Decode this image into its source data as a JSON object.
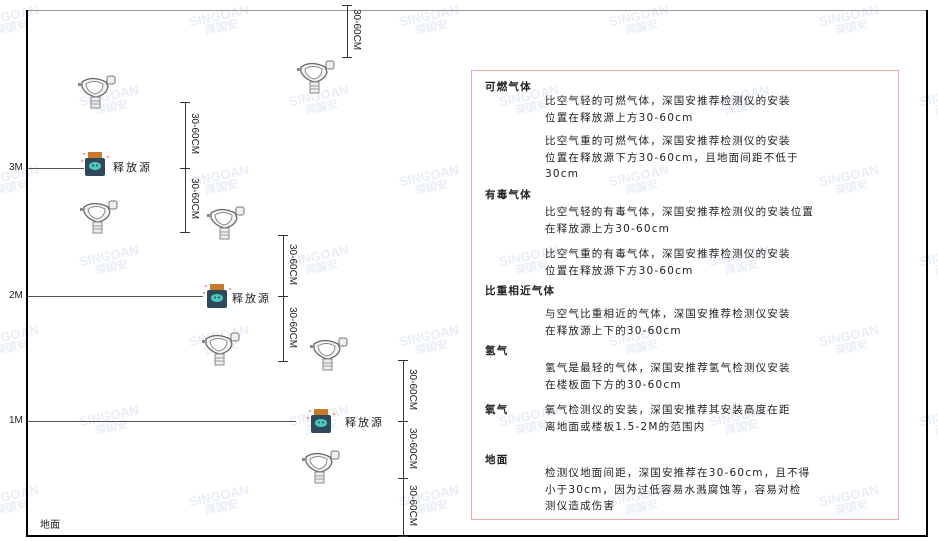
{
  "watermark": {
    "brand": "SINGOAN",
    "chinese": "深国安"
  },
  "levels": [
    "3M",
    "2M",
    "1M"
  ],
  "ground_label": "地面",
  "source_label": "释放源",
  "dimension_label": "30-60CM",
  "colors": {
    "box_border": "#f2a7ad",
    "frame": "#000000",
    "source_body": "#2e4a5a",
    "source_cap": "#c87a2a",
    "source_face": "#4ec9c0"
  },
  "legend": {
    "sections": [
      {
        "title": "可燃气体",
        "paragraphs": [
          [
            "比空气轻的可燃气体，深国安推荐检测仪的安装",
            "位置在释放源上方30-60cm"
          ],
          [
            "比空气重的可燃气体，深国安推荐检测仪的安装",
            "位置在释放源下方30-60cm，且地面间距不低于",
            "30cm"
          ]
        ]
      },
      {
        "title": "有毒气体",
        "paragraphs": [
          [
            "比空气轻的有毒气体，深国安推荐检测仪的安装位置",
            "在释放源上方30-60cm"
          ],
          [
            "比空气重的有毒气体，深国安推荐检测仪的安装",
            "位置在释放源下方30-60cm"
          ]
        ]
      },
      {
        "title": "比重相近气体",
        "paragraphs": [
          [
            "与空气比重相近的气体，深国安推荐检测仪安装",
            "在释放源上下的30-60cm"
          ]
        ]
      },
      {
        "title": "氢气",
        "paragraphs": [
          [
            "氢气是最轻的气体，深国安推荐氢气检测仪安装",
            "在楼板面下方的30-60cm"
          ]
        ]
      },
      {
        "title": "氧气",
        "paragraphs": [
          [
            "氧气检测仪的安装，深国安推荐其安装高度在距",
            "离地面或楼板1.5-2M的范围内"
          ]
        ]
      },
      {
        "title": "地面",
        "paragraphs": [
          [
            "检测仪地面间距，深国安推荐在30-60cm，且不得",
            "小于30cm，因为过低容易水溅腐蚀等，容易对检",
            "测仪造成伤害"
          ]
        ]
      }
    ]
  }
}
